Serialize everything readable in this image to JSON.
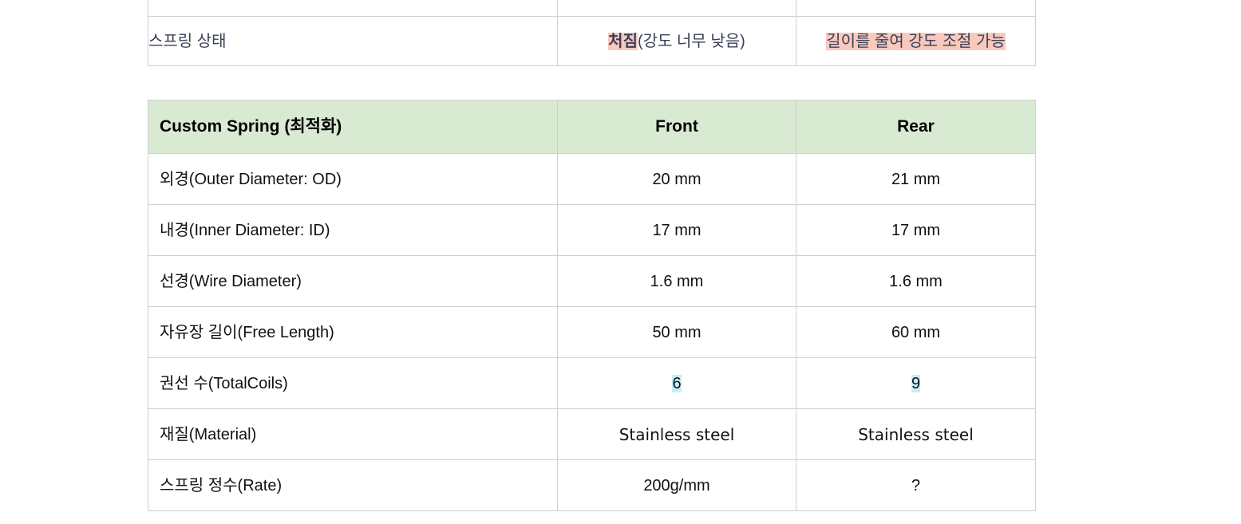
{
  "prev_table": {
    "state_row": {
      "label": "스프링 상태",
      "front_bold": "처짐",
      "front_rest": "(강도 너무 낮음)",
      "rear": "길이를 줄여 강도 조절 가능"
    }
  },
  "spec_table": {
    "header": {
      "title": "Custom Spring (최적화)",
      "front": "Front",
      "rear": "Rear"
    },
    "rows": [
      {
        "label": "외경(Outer Diameter: OD)",
        "front": "20 mm",
        "rear": "21 mm"
      },
      {
        "label": "내경(Inner Diameter: ID)",
        "front": "17 mm",
        "rear": "17 mm"
      },
      {
        "label": "선경(Wire Diameter)",
        "front": "1.6 mm",
        "rear": "1.6 mm"
      },
      {
        "label": "자유장 길이(Free Length)",
        "front": "50 mm",
        "rear": "60 mm"
      },
      {
        "label": "권선 수(TotalCoils)",
        "front": "6",
        "rear": "9"
      },
      {
        "label": "재질(Material)",
        "front": "Stainless steel",
        "rear": "Stainless steel"
      },
      {
        "label": "스프링 정수(Rate)",
        "front": "200g/mm",
        "rear": "?"
      }
    ]
  },
  "colors": {
    "header_bg": "#d9ead3",
    "highlight_red": "#f9c9bd",
    "highlight_blue": "#c6eef7",
    "border": "#cfcfcf"
  }
}
